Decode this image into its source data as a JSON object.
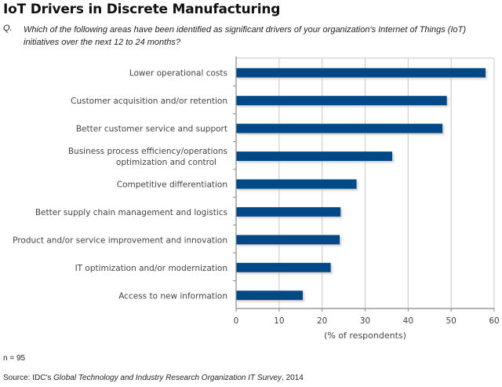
{
  "header": {
    "title": "IoT Drivers in Discrete Manufacturing",
    "question_label": "Q.",
    "question_text": "Which of the following areas have been identified as significant drivers of your organization's Internet of Things (IoT) initiatives over the next 12 to 24 months?"
  },
  "footer": {
    "sample_size": "n = 95",
    "source_prefix": "Source: IDC's ",
    "source_title": "Global Technology and Industry Research Organization IT Survey",
    "source_suffix": ", 2014"
  },
  "colors": {
    "bar": "#004A87",
    "grid": "#d0d0d0",
    "axis": "#888888"
  },
  "chart_data": {
    "type": "bar",
    "orientation": "horizontal",
    "title": "IoT Drivers in Discrete Manufacturing",
    "xlabel": "(% of respondents)",
    "ylabel": "",
    "xlim": [
      0,
      60
    ],
    "xticks": [
      0,
      10,
      20,
      30,
      40,
      50,
      60
    ],
    "grid": true,
    "legend": "none",
    "categories": [
      [
        "Lower operational costs"
      ],
      [
        "Customer acquisition and/or retention"
      ],
      [
        "Better customer service and support"
      ],
      [
        "Business process efficiency/operations",
        "optimization and control"
      ],
      [
        "Competitive differentiation"
      ],
      [
        "Better supply chain management and logistics"
      ],
      [
        "Product and/or service improvement and innovation"
      ],
      [
        "IT optimization and/or modernization"
      ],
      [
        "Access to new information"
      ]
    ],
    "values": [
      58,
      49,
      48,
      36.3,
      28,
      24.3,
      24.1,
      22,
      15.5
    ]
  }
}
